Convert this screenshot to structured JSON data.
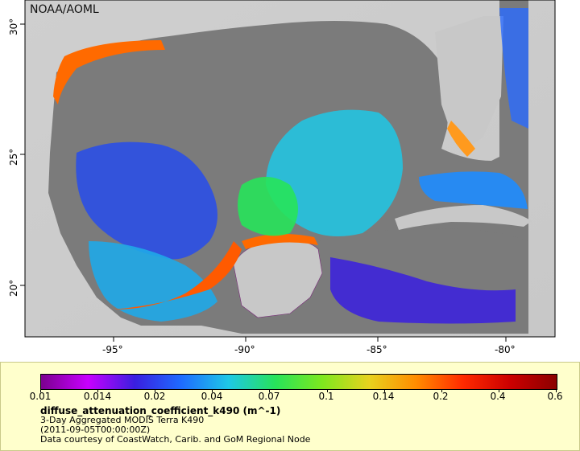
{
  "map": {
    "credit": "NOAA/AOML",
    "x_ticks": [
      "-95°",
      "-90°",
      "-85°",
      "-80°"
    ],
    "y_ticks": [
      "30°",
      "25°",
      "20°"
    ]
  },
  "legend": {
    "ticks": [
      "0.01",
      "0.014",
      "0.02",
      "0.04",
      "0.07",
      "0.1",
      "0.14",
      "0.2",
      "0.4",
      "0.6"
    ],
    "title": "diffuse_attenuation_coefficient_k490 (m^-1)",
    "line1": "3-Day Aggregated MODIS Terra K490",
    "line2": "(2011-09-05T00:00:00Z)",
    "line3": "Data courtesy of CoastWatch, Carib. and GoM Regional Node",
    "colors": [
      "#7a008f",
      "#c800ff",
      "#3a1fe0",
      "#1e6cff",
      "#1ec8e6",
      "#27e35a",
      "#7ee81e",
      "#e8d21e",
      "#ff8c00",
      "#ff2a00",
      "#cc0000",
      "#8b0000"
    ]
  }
}
